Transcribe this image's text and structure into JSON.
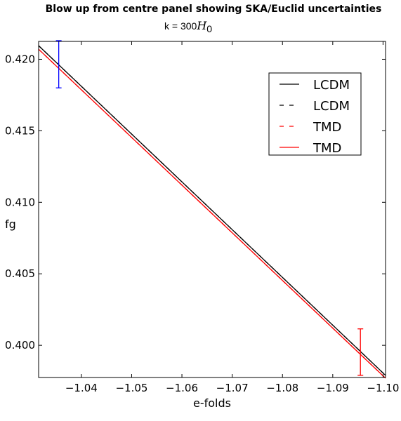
{
  "chart_data": {
    "type": "line",
    "title": "Blow up from centre panel showing SKA/Euclid uncertainties",
    "subtitle": {
      "prefix": "k = 300",
      "math_symbol": "H",
      "math_subscript": "0"
    },
    "xlabel": "e-folds",
    "ylabel": "fg",
    "xlim": [
      -1.0315,
      -1.1005
    ],
    "ylim": [
      0.39775,
      0.42125
    ],
    "x_inverted": true,
    "grid": false,
    "legend_position": "top-right",
    "x_ticks": [
      -1.04,
      -1.05,
      -1.06,
      -1.07,
      -1.08,
      -1.09,
      -1.1
    ],
    "x_tick_labels": [
      "−1.04",
      "−1.05",
      "−1.06",
      "−1.07",
      "−1.08",
      "−1.09",
      "−1.10"
    ],
    "y_ticks": [
      0.4,
      0.405,
      0.41,
      0.415,
      0.42
    ],
    "y_tick_labels": [
      "0.400",
      "0.405",
      "0.410",
      "0.415",
      "0.420"
    ],
    "series": [
      {
        "name": "LCDM",
        "color": "#000000",
        "style": "solid",
        "x": [
          -1.0315,
          -1.1005
        ],
        "y": [
          0.42095,
          0.3979
        ]
      },
      {
        "name": "LCDM",
        "color": "#000000",
        "style": "dashed",
        "x": [
          -1.0315,
          -1.1005
        ],
        "y": [
          0.42095,
          0.3979
        ]
      },
      {
        "name": "TMD",
        "color": "#ff0000",
        "style": "dashed",
        "x": [
          -1.0315,
          -1.1005
        ],
        "y": [
          0.4207,
          0.3977
        ]
      },
      {
        "name": "TMD",
        "color": "#ff0000",
        "style": "solid",
        "x": [
          -1.0315,
          -1.1005
        ],
        "y": [
          0.4207,
          0.3977
        ]
      }
    ],
    "error_bars": [
      {
        "x": -1.0355,
        "y": 0.41965,
        "low": 0.418,
        "high": 0.4213,
        "color": "#0000ff"
      },
      {
        "x": -1.0955,
        "y": 0.3995,
        "low": 0.3979,
        "high": 0.40115,
        "color": "#ff0000"
      }
    ]
  }
}
